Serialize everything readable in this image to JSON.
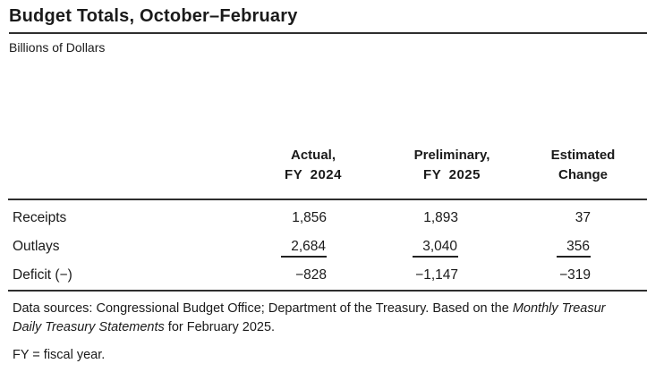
{
  "header": {
    "title": "Budget Totals, October–February",
    "subtitle": "Billions of Dollars"
  },
  "table": {
    "columns": [
      {
        "line1": "Actual,",
        "line2": "FY 2024"
      },
      {
        "line1": "Preliminary,",
        "line2": "FY 2025"
      },
      {
        "line1": "Estimated",
        "line2": "Change"
      }
    ],
    "rows": [
      {
        "label": "Receipts",
        "values": [
          "1,856",
          "1,893",
          "37"
        ]
      },
      {
        "label": "Outlays",
        "values": [
          "2,684",
          "3,040",
          "356"
        ]
      },
      {
        "label": "Deficit (−)",
        "values": [
          "−828",
          "−1,147",
          "−319"
        ]
      }
    ]
  },
  "colors": {
    "highlight": "#F3C235",
    "rule": "#2e2e2e",
    "text": "#1a1a1a"
  },
  "footnotes": {
    "sources_prefix": "Data sources: Congressional Budget Office; Department of the Treasury. Based on the ",
    "sources_italic_1": "Monthly Treasur",
    "sources_italic_2": "Daily Treasury Statements",
    "sources_suffix": " for February 2025.",
    "fy_note": "FY = fiscal year."
  }
}
